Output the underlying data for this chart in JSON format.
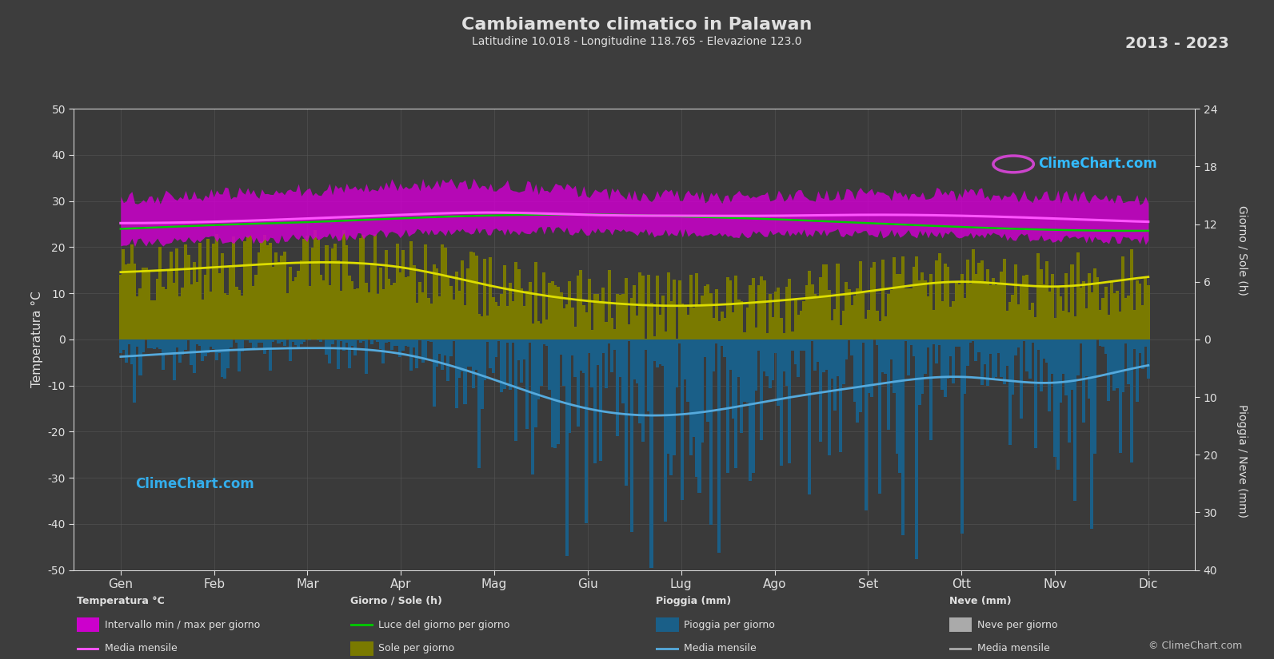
{
  "title": "Cambiamento climatico in Palawan",
  "subtitle": "Latitudine 10.018 - Longitudine 118.765 - Elevazione 123.0",
  "year_range": "2013 - 2023",
  "bg_color": "#3d3d3d",
  "plot_bg_color": "#3a3a3a",
  "grid_color": "#555555",
  "text_color": "#e0e0e0",
  "months": [
    "Gen",
    "Feb",
    "Mar",
    "Apr",
    "Mag",
    "Giu",
    "Lug",
    "Ago",
    "Set",
    "Ott",
    "Nov",
    "Dic"
  ],
  "temp_ylim": [
    -50,
    50
  ],
  "temp_mean_monthly": [
    25.2,
    25.5,
    26.2,
    27.0,
    27.5,
    27.0,
    26.8,
    26.8,
    27.0,
    26.8,
    26.2,
    25.5
  ],
  "temp_max_monthly": [
    29.0,
    30.0,
    31.0,
    32.0,
    32.0,
    30.5,
    29.5,
    29.5,
    30.0,
    30.0,
    29.5,
    29.0
  ],
  "temp_min_monthly": [
    22.0,
    22.5,
    23.0,
    24.0,
    24.5,
    24.5,
    24.0,
    24.0,
    24.0,
    23.5,
    23.0,
    22.5
  ],
  "temp_max_daily_var": 3.0,
  "temp_min_daily_var": 2.0,
  "daylight_monthly": [
    11.5,
    11.9,
    12.2,
    12.6,
    12.9,
    13.0,
    12.8,
    12.5,
    12.1,
    11.7,
    11.4,
    11.3
  ],
  "sunshine_monthly": [
    7.0,
    7.5,
    8.0,
    7.5,
    5.5,
    4.0,
    3.5,
    4.0,
    5.0,
    6.0,
    5.5,
    6.5
  ],
  "sunshine_daily_var": 3.5,
  "rain_daily_mean_mm": [
    3.0,
    2.0,
    1.5,
    2.5,
    7.0,
    12.0,
    13.0,
    10.5,
    8.0,
    6.5,
    7.5,
    4.5
  ],
  "rain_daily_var_factor": 3.0,
  "temp_band_color": "#cc00cc",
  "temp_mean_color": "#ff55ff",
  "sunshine_bar_color": "#7a7a00",
  "sunshine_mean_color": "#dddd00",
  "daylight_color": "#00cc00",
  "rain_bar_color": "#1a5f88",
  "rain_mean_color": "#55aadd",
  "snow_bar_color": "#aaaaaa",
  "ylabel_left": "Temperatura °C",
  "ylabel_right_top": "Giorno / Sole (h)",
  "ylabel_right_bottom": "Pioggia / Neve (mm)",
  "sun_right_ticks": [
    0,
    6,
    12,
    18,
    24
  ],
  "rain_right_ticks": [
    0,
    10,
    20,
    30,
    40
  ],
  "left_ticks": [
    -50,
    -40,
    -30,
    -20,
    -10,
    0,
    10,
    20,
    30,
    40,
    50
  ],
  "copyright_text": "© ClimeChart.com",
  "logo_text": "ClimeChart.com",
  "watermark_text": "ClimeChart.com"
}
